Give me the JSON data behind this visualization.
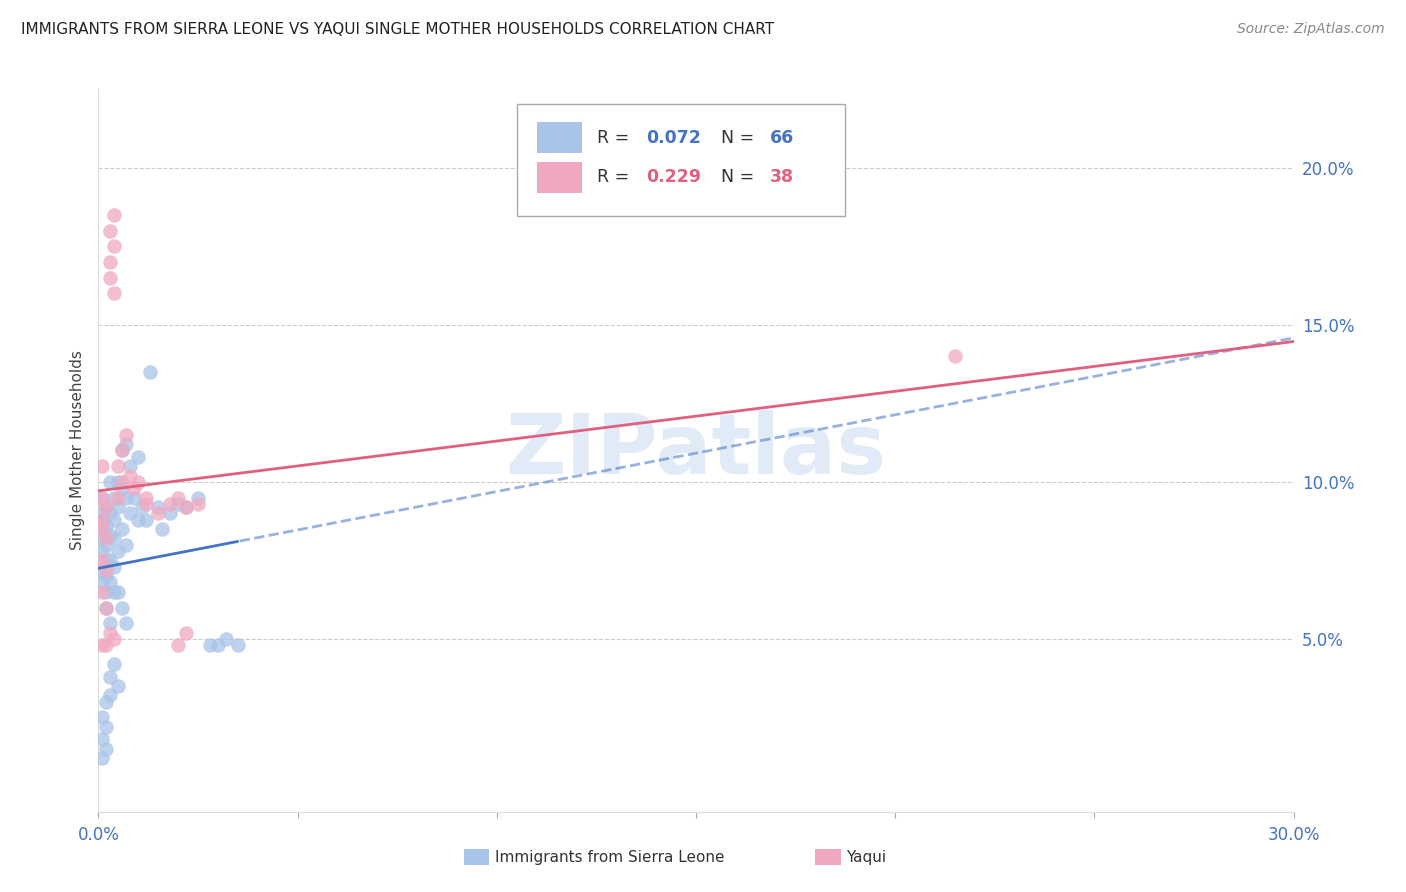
{
  "title": "IMMIGRANTS FROM SIERRA LEONE VS YAQUI SINGLE MOTHER HOUSEHOLDS CORRELATION CHART",
  "source": "Source: ZipAtlas.com",
  "ylabel": "Single Mother Households",
  "series1_label": "Immigrants from Sierra Leone",
  "series2_label": "Yaqui",
  "series1_color": "#a8c4e8",
  "series2_color": "#f0a8c0",
  "line1_color": "#4472c4",
  "line2_color": "#e06080",
  "r1": "0.072",
  "n1": "66",
  "r2": "0.229",
  "n2": "38",
  "xmin": 0.0,
  "xmax": 0.3,
  "ymin": -0.005,
  "ymax": 0.225,
  "yticks": [
    0.05,
    0.1,
    0.15,
    0.2
  ],
  "ytick_labels": [
    "5.0%",
    "10.0%",
    "15.0%",
    "20.0%"
  ],
  "blue_x": [
    0.001,
    0.001,
    0.001,
    0.001,
    0.001,
    0.001,
    0.001,
    0.001,
    0.002,
    0.002,
    0.002,
    0.002,
    0.002,
    0.002,
    0.002,
    0.003,
    0.003,
    0.003,
    0.003,
    0.003,
    0.003,
    0.004,
    0.004,
    0.004,
    0.004,
    0.004,
    0.005,
    0.005,
    0.005,
    0.005,
    0.006,
    0.006,
    0.006,
    0.007,
    0.007,
    0.007,
    0.008,
    0.008,
    0.009,
    0.01,
    0.01,
    0.011,
    0.012,
    0.013,
    0.015,
    0.016,
    0.018,
    0.02,
    0.022,
    0.025,
    0.028,
    0.03,
    0.032,
    0.035,
    0.001,
    0.001,
    0.002,
    0.002,
    0.003,
    0.003,
    0.004,
    0.005,
    0.001,
    0.002,
    0.006,
    0.007
  ],
  "blue_y": [
    0.085,
    0.09,
    0.095,
    0.088,
    0.078,
    0.082,
    0.072,
    0.068,
    0.092,
    0.086,
    0.08,
    0.075,
    0.07,
    0.065,
    0.06,
    0.09,
    0.083,
    0.075,
    0.068,
    0.055,
    0.1,
    0.095,
    0.088,
    0.082,
    0.073,
    0.065,
    0.1,
    0.092,
    0.078,
    0.065,
    0.11,
    0.098,
    0.085,
    0.112,
    0.095,
    0.08,
    0.105,
    0.09,
    0.095,
    0.108,
    0.088,
    0.092,
    0.088,
    0.135,
    0.092,
    0.085,
    0.09,
    0.093,
    0.092,
    0.095,
    0.048,
    0.048,
    0.05,
    0.048,
    0.025,
    0.018,
    0.03,
    0.022,
    0.038,
    0.032,
    0.042,
    0.035,
    0.012,
    0.015,
    0.06,
    0.055
  ],
  "pink_x": [
    0.001,
    0.001,
    0.001,
    0.001,
    0.001,
    0.001,
    0.002,
    0.002,
    0.002,
    0.002,
    0.003,
    0.003,
    0.003,
    0.004,
    0.004,
    0.004,
    0.005,
    0.005,
    0.006,
    0.006,
    0.007,
    0.008,
    0.009,
    0.01,
    0.012,
    0.015,
    0.018,
    0.02,
    0.022,
    0.025,
    0.002,
    0.003,
    0.004,
    0.02,
    0.022,
    0.012,
    0.215,
    0.001
  ],
  "pink_y": [
    0.085,
    0.095,
    0.105,
    0.088,
    0.075,
    0.065,
    0.092,
    0.082,
    0.072,
    0.06,
    0.17,
    0.18,
    0.165,
    0.175,
    0.185,
    0.16,
    0.105,
    0.095,
    0.11,
    0.1,
    0.115,
    0.102,
    0.098,
    0.1,
    0.095,
    0.09,
    0.093,
    0.095,
    0.092,
    0.093,
    0.048,
    0.052,
    0.05,
    0.048,
    0.052,
    0.093,
    0.14,
    0.048
  ]
}
